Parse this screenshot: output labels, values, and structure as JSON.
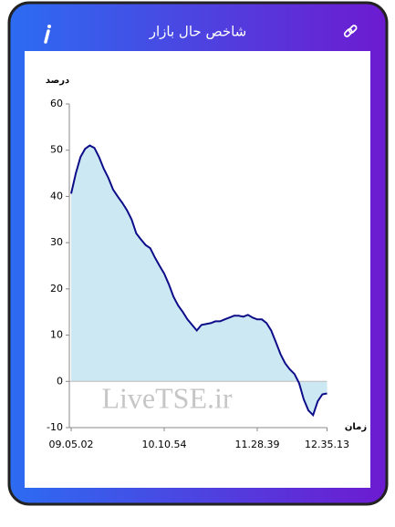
{
  "header": {
    "title": "شاخص حال بازار"
  },
  "chart_data": {
    "type": "area",
    "y_label": "درصد",
    "x_label": "زمان",
    "watermark": "LiveTSE.ir",
    "categories": [
      "09.05.02",
      null,
      null,
      null,
      null,
      null,
      null,
      null,
      null,
      null,
      null,
      null,
      null,
      null,
      null,
      null,
      null,
      null,
      null,
      null,
      "10.10.54",
      null,
      null,
      null,
      null,
      null,
      null,
      null,
      null,
      null,
      null,
      null,
      null,
      null,
      null,
      null,
      null,
      null,
      null,
      null,
      "11.28.39",
      null,
      null,
      null,
      null,
      null,
      null,
      null,
      null,
      null,
      null,
      null,
      null,
      null,
      null,
      "12.35.13"
    ],
    "values": [
      40.6,
      45,
      48.5,
      50.3,
      51,
      50.5,
      48.5,
      46,
      44,
      41.5,
      40,
      38.6,
      37,
      35,
      32,
      30.7,
      29.5,
      28.8,
      26.8,
      25,
      23.3,
      21,
      18.3,
      16.4,
      15,
      13.4,
      12.2,
      11,
      12.2,
      12.4,
      12.6,
      13,
      13,
      13.4,
      13.8,
      14.2,
      14.2,
      14,
      14.4,
      13.8,
      13.4,
      13.4,
      12.6,
      11,
      8.5,
      5.9,
      3.9,
      2.6,
      1.6,
      -0.4,
      -3.9,
      -6.3,
      -7.3,
      -4.3,
      -2.8,
      -2.6
    ],
    "color": "#0d0d8a",
    "fill": "#cce8f2",
    "ylim": [
      -10,
      60
    ],
    "yticks": [
      -10,
      0,
      10,
      20,
      30,
      40,
      50,
      60
    ],
    "grid": false
  }
}
